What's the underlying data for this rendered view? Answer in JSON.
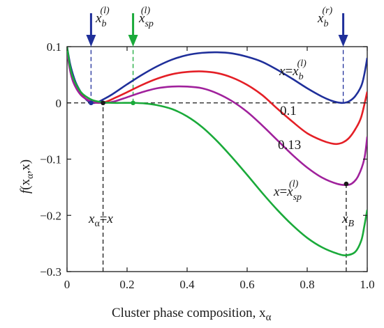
{
  "chart_data": {
    "type": "line",
    "xlabel": "Cluster phase composition, x",
    "xlabel_sub": "α",
    "ylabel_main": "f",
    "ylabel_args": "(x",
    "ylabel_sub": "α",
    "ylabel_tail": ",x)",
    "xlim": [
      0,
      1.0
    ],
    "ylim": [
      -0.3,
      0.1
    ],
    "x_ticks": [
      0,
      0.2,
      0.4,
      0.6,
      0.8,
      1.0
    ],
    "x_tick_labels": [
      "0",
      "0.2",
      "0.4",
      "0.6",
      "0.8",
      "1.0"
    ],
    "y_ticks": [
      0.1,
      0,
      -0.1,
      -0.2,
      -0.3
    ],
    "y_tick_labels": [
      "0.1",
      "0",
      "−0.1",
      "−0.2",
      "−0.3"
    ],
    "grid": false,
    "zero_line": "dashed",
    "series": [
      {
        "key": "blue",
        "color": "#1f2f9a",
        "points": [
          [
            0,
            0.1
          ],
          [
            0.01,
            0.07
          ],
          [
            0.02,
            0.05
          ],
          [
            0.03,
            0.035
          ],
          [
            0.045,
            0.02
          ],
          [
            0.06,
            0.008
          ],
          [
            0.08,
            0.0
          ],
          [
            0.1,
            0.001
          ],
          [
            0.12,
            0.006
          ],
          [
            0.15,
            0.015
          ],
          [
            0.2,
            0.033
          ],
          [
            0.25,
            0.05
          ],
          [
            0.3,
            0.065
          ],
          [
            0.35,
            0.077
          ],
          [
            0.4,
            0.085
          ],
          [
            0.45,
            0.089
          ],
          [
            0.5,
            0.09
          ],
          [
            0.55,
            0.088
          ],
          [
            0.6,
            0.082
          ],
          [
            0.65,
            0.073
          ],
          [
            0.7,
            0.059
          ],
          [
            0.75,
            0.043
          ],
          [
            0.8,
            0.026
          ],
          [
            0.85,
            0.011
          ],
          [
            0.88,
            0.004
          ],
          [
            0.9,
            0.001
          ],
          [
            0.92,
            0.0
          ],
          [
            0.94,
            0.003
          ],
          [
            0.96,
            0.012
          ],
          [
            0.98,
            0.03
          ],
          [
            0.99,
            0.05
          ],
          [
            1.0,
            0.08
          ]
        ]
      },
      {
        "key": "red",
        "color": "#e41f26",
        "points": [
          [
            0,
            0.09
          ],
          [
            0.01,
            0.06
          ],
          [
            0.02,
            0.04
          ],
          [
            0.03,
            0.028
          ],
          [
            0.05,
            0.013
          ],
          [
            0.07,
            0.005
          ],
          [
            0.09,
            0.001
          ],
          [
            0.11,
            0.0
          ],
          [
            0.13,
            0.002
          ],
          [
            0.16,
            0.009
          ],
          [
            0.2,
            0.019
          ],
          [
            0.25,
            0.032
          ],
          [
            0.3,
            0.043
          ],
          [
            0.35,
            0.051
          ],
          [
            0.4,
            0.055
          ],
          [
            0.45,
            0.056
          ],
          [
            0.5,
            0.053
          ],
          [
            0.55,
            0.045
          ],
          [
            0.6,
            0.032
          ],
          [
            0.65,
            0.014
          ],
          [
            0.7,
            -0.01
          ],
          [
            0.75,
            -0.033
          ],
          [
            0.8,
            -0.054
          ],
          [
            0.85,
            -0.067
          ],
          [
            0.88,
            -0.072
          ],
          [
            0.9,
            -0.073
          ],
          [
            0.92,
            -0.07
          ],
          [
            0.94,
            -0.062
          ],
          [
            0.96,
            -0.047
          ],
          [
            0.98,
            -0.025
          ],
          [
            1.0,
            0.02
          ]
        ]
      },
      {
        "key": "purple",
        "color": "#a0219c",
        "points": [
          [
            0,
            0.09
          ],
          [
            0.01,
            0.058
          ],
          [
            0.02,
            0.038
          ],
          [
            0.035,
            0.022
          ],
          [
            0.05,
            0.012
          ],
          [
            0.07,
            0.005
          ],
          [
            0.09,
            0.001
          ],
          [
            0.11,
            0.0
          ],
          [
            0.13,
            0.0
          ],
          [
            0.16,
            0.003
          ],
          [
            0.2,
            0.01
          ],
          [
            0.25,
            0.019
          ],
          [
            0.3,
            0.026
          ],
          [
            0.35,
            0.029
          ],
          [
            0.4,
            0.029
          ],
          [
            0.45,
            0.026
          ],
          [
            0.5,
            0.017
          ],
          [
            0.55,
            0.003
          ],
          [
            0.6,
            -0.016
          ],
          [
            0.65,
            -0.04
          ],
          [
            0.7,
            -0.066
          ],
          [
            0.75,
            -0.092
          ],
          [
            0.8,
            -0.115
          ],
          [
            0.85,
            -0.133
          ],
          [
            0.9,
            -0.144
          ],
          [
            0.93,
            -0.146
          ],
          [
            0.95,
            -0.143
          ],
          [
            0.97,
            -0.13
          ],
          [
            0.99,
            -0.1
          ],
          [
            1.0,
            -0.06
          ]
        ]
      },
      {
        "key": "green",
        "color": "#1aaa3a",
        "points": [
          [
            0,
            0.1
          ],
          [
            0.01,
            0.065
          ],
          [
            0.02,
            0.045
          ],
          [
            0.035,
            0.028
          ],
          [
            0.05,
            0.017
          ],
          [
            0.07,
            0.009
          ],
          [
            0.09,
            0.004
          ],
          [
            0.12,
            0.001
          ],
          [
            0.15,
            0.0
          ],
          [
            0.18,
            0.0
          ],
          [
            0.22,
            0.0
          ],
          [
            0.26,
            -0.001
          ],
          [
            0.3,
            -0.004
          ],
          [
            0.35,
            -0.011
          ],
          [
            0.4,
            -0.024
          ],
          [
            0.45,
            -0.043
          ],
          [
            0.5,
            -0.068
          ],
          [
            0.55,
            -0.097
          ],
          [
            0.6,
            -0.128
          ],
          [
            0.65,
            -0.16
          ],
          [
            0.7,
            -0.19
          ],
          [
            0.75,
            -0.217
          ],
          [
            0.8,
            -0.24
          ],
          [
            0.85,
            -0.257
          ],
          [
            0.9,
            -0.268
          ],
          [
            0.93,
            -0.271
          ],
          [
            0.96,
            -0.265
          ],
          [
            0.98,
            -0.245
          ],
          [
            0.99,
            -0.22
          ],
          [
            1.0,
            -0.19
          ]
        ]
      }
    ],
    "markers": [
      {
        "x": 0.08,
        "y": 0.0,
        "color": "#1f2f9a"
      },
      {
        "x": 0.12,
        "y": 0.0,
        "color": "#1a1a1a"
      },
      {
        "x": 0.22,
        "y": 0.0,
        "color": "#1aaa3a"
      },
      {
        "x": 0.93,
        "y": -0.144,
        "color": "#1a1a1a"
      }
    ],
    "vlines": [
      {
        "x": 0.08,
        "y_from": 0.0,
        "y_to": 0.1,
        "color": "#1f2f9a"
      },
      {
        "x": 0.22,
        "y_from": 0.0,
        "y_to": 0.1,
        "color": "#1aaa3a"
      },
      {
        "x": 0.92,
        "y_from": 0.0,
        "y_to": 0.1,
        "color": "#1f2f9a"
      },
      {
        "x": 0.12,
        "y_from": -0.3,
        "y_to": 0.0,
        "color": "#1a1a1a"
      },
      {
        "x": 0.93,
        "y_from": -0.3,
        "y_to": -0.144,
        "color": "#1a1a1a"
      }
    ],
    "arrows": [
      {
        "x": 0.08,
        "color": "#1f2f9a"
      },
      {
        "x": 0.22,
        "color": "#1aaa3a"
      },
      {
        "x": 0.92,
        "color": "#1f2f9a"
      }
    ],
    "labels": {
      "xbl_main": "x",
      "xbl_sub": "b",
      "xbl_sup": "(l)",
      "xspl_main": "x",
      "xspl_sub": "sp",
      "xspl_sup": "(l)",
      "xbr_main": "x",
      "xbr_sub": "b",
      "xbr_sup": "(r)",
      "blue_main": "x",
      "blue_eq": "=",
      "blue_var": "x",
      "blue_sub": "b",
      "blue_sup": "(l)",
      "red": "0.1",
      "purple": "0.13",
      "green_main": "x",
      "green_eq": "=",
      "green_var": "x",
      "green_sub": "sp",
      "green_sup": "(l)",
      "xa_main": "x",
      "xa_sub": "α",
      "xa_eq": "=",
      "xa_rhs": "x",
      "xB_main": "x",
      "xB_sub": "B"
    }
  }
}
